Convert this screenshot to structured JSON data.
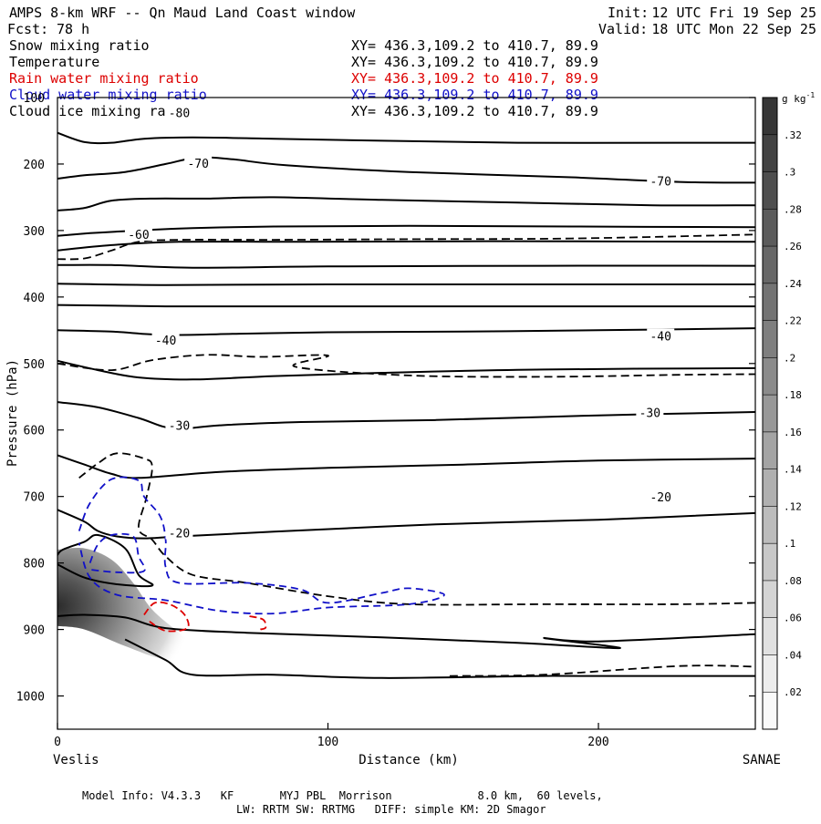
{
  "header": {
    "title": "AMPS 8-km WRF -- Qn Maud Land Coast window",
    "forecast_label": "Fcst:",
    "forecast_value": "78 h",
    "init_label": "Init:",
    "init_value": "12 UTC Fri 19 Sep 25",
    "valid_label": "Valid:",
    "valid_value": "18 UTC Mon 22 Sep 25"
  },
  "fields": [
    {
      "name": "Snow mixing ratio",
      "xy": "XY= 436.3,109.2 to 410.7, 89.9",
      "color": "#000000"
    },
    {
      "name": "Temperature",
      "xy": "XY= 436.3,109.2 to 410.7, 89.9",
      "color": "#000000"
    },
    {
      "name": "Rain water mixing ratio",
      "xy": "XY= 436.3,109.2 to 410.7, 89.9",
      "color": "#dd0000"
    },
    {
      "name": "Cloud water mixing ratio",
      "xy": "XY= 436.3,109.2 to 410.7, 89.9",
      "color": "#1010c8"
    },
    {
      "name": "Cloud ice mixing ratio",
      "xy": "XY= 436.3,109.2 to 410.7, 89.9",
      "color": "#000000"
    }
  ],
  "colorbar": {
    "unit": "g kg",
    "unit_exp": "-1",
    "levels": [
      0,
      0.02,
      0.04,
      0.06,
      0.08,
      0.1,
      0.12,
      0.14,
      0.16,
      0.18,
      0.2,
      0.22,
      0.24,
      0.26,
      0.28,
      0.3,
      0.32,
      0.34
    ],
    "tick_labels": [
      ".02",
      ".04",
      ".06",
      ".08",
      ".1",
      ".12",
      ".14",
      ".16",
      ".18",
      ".2",
      ".22",
      ".24",
      ".26",
      ".28",
      ".3",
      ".32"
    ]
  },
  "footer": {
    "model_info": "Model Info: V4.3.3   KF       MYJ PBL  Morrison             8.0 km,  60 levels,",
    "physics": "LW: RRTM SW: RRTMG   DIFF: simple KM: 2D Smagor"
  },
  "chart_data": {
    "type": "contour",
    "title": "AMPS 8-km WRF -- Qn Maud Land Coast window",
    "xlabel": "Distance (km)",
    "ylabel": "Pressure (hPa)",
    "xlim": [
      0,
      258
    ],
    "ylim": [
      1050,
      100
    ],
    "xticks": [
      0,
      100,
      200
    ],
    "xtick_labels": [
      "0",
      "100",
      "200"
    ],
    "yticks": [
      100,
      200,
      300,
      400,
      500,
      600,
      700,
      800,
      900,
      1000
    ],
    "ytick_labels": [
      "100",
      "200",
      "300",
      "400",
      "500",
      "600",
      "700",
      "800",
      "900",
      "1000"
    ],
    "endpoint_left": "Veslis",
    "endpoint_right": "SANAE",
    "temperature_labels": [
      {
        "text": "-80",
        "x": 45,
        "p": 124
      },
      {
        "text": "-70",
        "x": 52,
        "p": 200
      },
      {
        "text": "-70",
        "x": 223,
        "p": 227
      },
      {
        "text": "-60",
        "x": 30,
        "p": 307
      },
      {
        "text": "-40",
        "x": 40,
        "p": 466
      },
      {
        "text": "-40",
        "x": 223,
        "p": 460
      },
      {
        "text": "-30",
        "x": 45,
        "p": 594
      },
      {
        "text": "-30",
        "x": 219,
        "p": 575
      },
      {
        "text": "-20",
        "x": 45,
        "p": 756
      },
      {
        "text": "-20",
        "x": 223,
        "p": 702
      }
    ],
    "temperature_contours": [
      [
        [
          0,
          153
        ],
        [
          10,
          167
        ],
        [
          20,
          168
        ],
        [
          32,
          162
        ],
        [
          50,
          160
        ],
        [
          80,
          162
        ],
        [
          120,
          165
        ],
        [
          170,
          168
        ],
        [
          230,
          168
        ],
        [
          258,
          168
        ]
      ],
      [
        [
          0,
          222
        ],
        [
          10,
          217
        ],
        [
          25,
          212
        ],
        [
          40,
          200
        ],
        [
          52,
          190
        ],
        [
          65,
          193
        ],
        [
          85,
          202
        ],
        [
          130,
          212
        ],
        [
          190,
          220
        ],
        [
          230,
          227
        ],
        [
          258,
          228
        ]
      ],
      [
        [
          0,
          270
        ],
        [
          10,
          266
        ],
        [
          20,
          255
        ],
        [
          35,
          252
        ],
        [
          55,
          252
        ],
        [
          80,
          250
        ],
        [
          120,
          254
        ],
        [
          170,
          258
        ],
        [
          220,
          262
        ],
        [
          258,
          262
        ]
      ],
      [
        [
          0,
          308
        ],
        [
          12,
          304
        ],
        [
          25,
          301
        ],
        [
          45,
          297
        ],
        [
          80,
          294
        ],
        [
          130,
          293
        ],
        [
          190,
          294
        ],
        [
          258,
          295
        ]
      ],
      [
        [
          0,
          330
        ],
        [
          20,
          322
        ],
        [
          45,
          317
        ],
        [
          90,
          317
        ],
        [
          160,
          316
        ],
        [
          258,
          317
        ]
      ],
      [
        [
          0,
          352
        ],
        [
          20,
          352
        ],
        [
          50,
          356
        ],
        [
          100,
          354
        ],
        [
          180,
          353
        ],
        [
          258,
          353
        ]
      ],
      [
        [
          0,
          380
        ],
        [
          40,
          382
        ],
        [
          100,
          381
        ],
        [
          180,
          381
        ],
        [
          258,
          381
        ]
      ],
      [
        [
          0,
          412
        ],
        [
          40,
          414
        ],
        [
          100,
          414
        ],
        [
          180,
          414
        ],
        [
          258,
          414
        ]
      ],
      [
        [
          0,
          450
        ],
        [
          20,
          452
        ],
        [
          40,
          457
        ],
        [
          70,
          455
        ],
        [
          100,
          453
        ],
        [
          150,
          452
        ],
        [
          200,
          450
        ],
        [
          258,
          447
        ]
      ],
      [
        [
          0,
          496
        ],
        [
          15,
          510
        ],
        [
          30,
          521
        ],
        [
          50,
          524
        ],
        [
          80,
          519
        ],
        [
          120,
          514
        ],
        [
          180,
          509
        ],
        [
          258,
          507
        ]
      ],
      [
        [
          0,
          558
        ],
        [
          15,
          566
        ],
        [
          30,
          582
        ],
        [
          43,
          598
        ],
        [
          60,
          593
        ],
        [
          90,
          588
        ],
        [
          140,
          585
        ],
        [
          200,
          578
        ],
        [
          258,
          573
        ]
      ],
      [
        [
          0,
          638
        ],
        [
          10,
          652
        ],
        [
          20,
          666
        ],
        [
          30,
          672
        ],
        [
          60,
          663
        ],
        [
          100,
          657
        ],
        [
          150,
          652
        ],
        [
          200,
          646
        ],
        [
          258,
          643
        ]
      ],
      [
        [
          0,
          720
        ],
        [
          10,
          738
        ],
        [
          15,
          752
        ],
        [
          22,
          760
        ],
        [
          32,
          763
        ],
        [
          45,
          760
        ],
        [
          80,
          753
        ],
        [
          140,
          742
        ],
        [
          200,
          735
        ],
        [
          258,
          725
        ]
      ],
      [
        [
          0,
          802
        ],
        [
          10,
          822
        ],
        [
          22,
          832
        ],
        [
          35,
          834
        ],
        [
          30,
          818
        ],
        [
          25,
          778
        ],
        [
          15,
          758
        ],
        [
          10,
          768
        ],
        [
          2,
          780
        ],
        [
          0,
          788
        ]
      ],
      [
        [
          0,
          880
        ],
        [
          10,
          878
        ],
        [
          25,
          882
        ],
        [
          40,
          898
        ],
        [
          70,
          905
        ],
        [
          120,
          912
        ],
        [
          170,
          920
        ],
        [
          208,
          928
        ],
        [
          180,
          913
        ],
        [
          200,
          918
        ],
        [
          258,
          907
        ]
      ],
      [
        [
          25,
          915
        ],
        [
          40,
          946
        ],
        [
          50,
          968
        ],
        [
          80,
          968
        ],
        [
          120,
          973
        ],
        [
          180,
          970
        ],
        [
          230,
          970
        ],
        [
          258,
          970
        ]
      ]
    ],
    "snow_contours": [
      [
        [
          0,
          343
        ],
        [
          10,
          342
        ],
        [
          20,
          330
        ],
        [
          30,
          317
        ],
        [
          45,
          314
        ],
        [
          80,
          314
        ],
        [
          130,
          313
        ],
        [
          190,
          312
        ],
        [
          258,
          306
        ]
      ],
      [
        [
          0,
          500
        ],
        [
          20,
          510
        ],
        [
          35,
          495
        ],
        [
          55,
          487
        ],
        [
          75,
          490
        ],
        [
          100,
          488
        ],
        [
          88,
          505
        ],
        [
          130,
          518
        ],
        [
          180,
          520
        ],
        [
          230,
          517
        ],
        [
          258,
          516
        ]
      ],
      [
        [
          8,
          672
        ],
        [
          15,
          650
        ],
        [
          22,
          635
        ],
        [
          32,
          643
        ],
        [
          35,
          655
        ],
        [
          33,
          700
        ],
        [
          30,
          748
        ],
        [
          35,
          765
        ],
        [
          40,
          790
        ],
        [
          50,
          818
        ],
        [
          70,
          830
        ],
        [
          100,
          850
        ],
        [
          130,
          862
        ],
        [
          180,
          862
        ],
        [
          230,
          862
        ],
        [
          258,
          860
        ]
      ],
      [
        [
          145,
          970
        ],
        [
          180,
          968
        ],
        [
          230,
          955
        ],
        [
          258,
          956
        ]
      ]
    ],
    "cloud_water_contours": [
      [
        [
          8,
          752
        ],
        [
          12,
          710
        ],
        [
          20,
          674
        ],
        [
          30,
          676
        ],
        [
          32,
          700
        ],
        [
          38,
          730
        ],
        [
          40,
          765
        ],
        [
          40,
          806
        ],
        [
          45,
          830
        ],
        [
          70,
          830
        ],
        [
          90,
          840
        ],
        [
          100,
          860
        ],
        [
          120,
          845
        ],
        [
          130,
          838
        ],
        [
          143,
          848
        ],
        [
          130,
          862
        ],
        [
          100,
          867
        ],
        [
          80,
          876
        ],
        [
          60,
          872
        ],
        [
          40,
          856
        ],
        [
          22,
          848
        ],
        [
          12,
          822
        ],
        [
          8,
          770
        ]
      ],
      [
        [
          12,
          800
        ],
        [
          15,
          772
        ],
        [
          20,
          758
        ],
        [
          28,
          760
        ],
        [
          30,
          790
        ],
        [
          32,
          812
        ],
        [
          22,
          814
        ],
        [
          12,
          810
        ]
      ]
    ],
    "rain_contours": [
      [
        [
          32,
          878
        ],
        [
          36,
          860
        ],
        [
          42,
          863
        ],
        [
          47,
          878
        ],
        [
          48,
          898
        ],
        [
          40,
          902
        ],
        [
          34,
          888
        ]
      ],
      [
        [
          71,
          880
        ],
        [
          76,
          885
        ],
        [
          77,
          897
        ],
        [
          75,
          900
        ]
      ]
    ],
    "snow_shading_peak_gkg": 0.34,
    "snow_shading_region": [
      [
        0,
        780
      ],
      [
        10,
        778
      ],
      [
        20,
        795
      ],
      [
        28,
        830
      ],
      [
        35,
        870
      ],
      [
        45,
        905
      ],
      [
        55,
        940
      ],
      [
        40,
        945
      ],
      [
        25,
        925
      ],
      [
        10,
        900
      ],
      [
        0,
        895
      ]
    ]
  }
}
